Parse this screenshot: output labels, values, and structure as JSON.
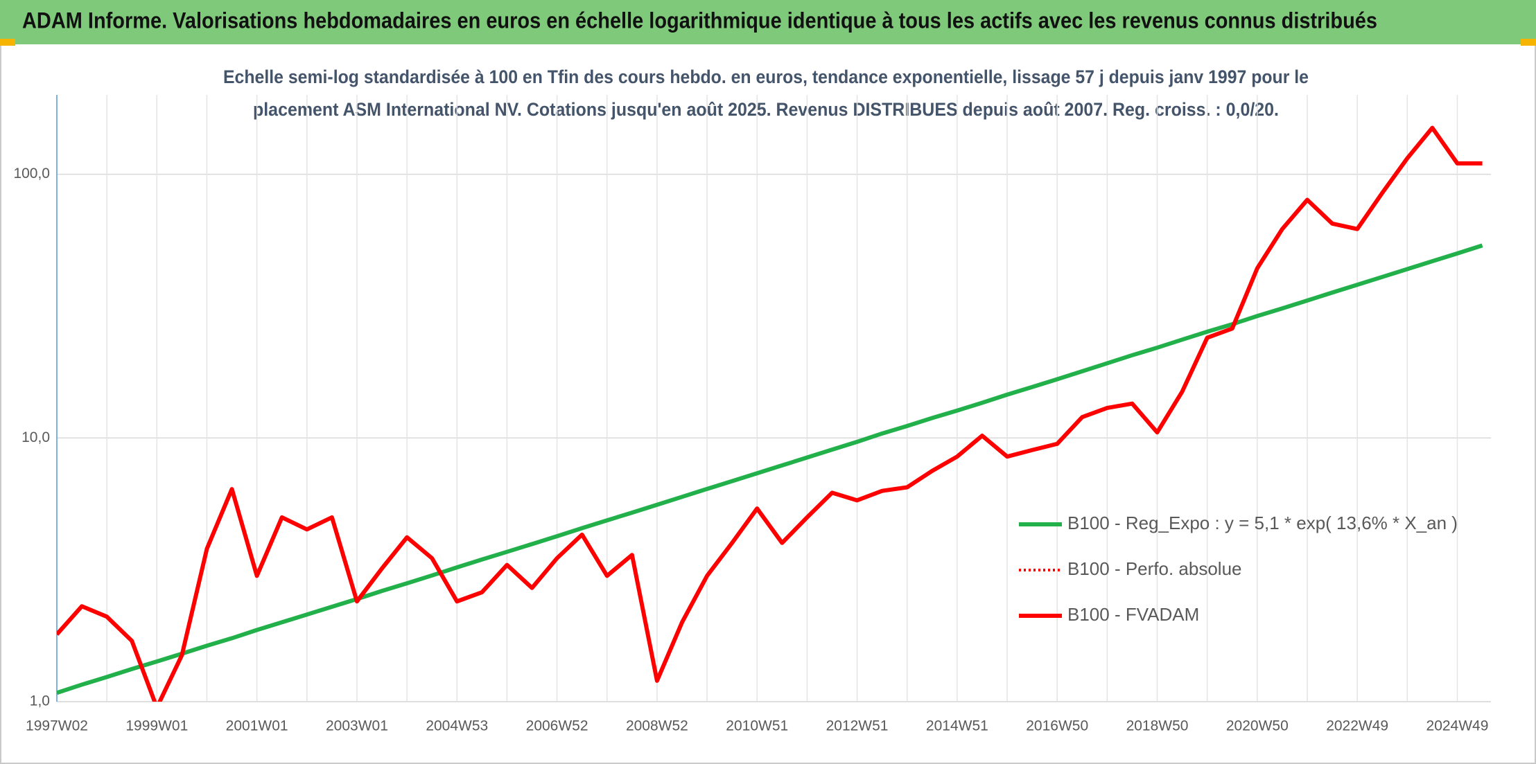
{
  "chart_data": {
    "type": "line",
    "title": "ADAM Informe. Valorisations hebdomadaires en euros en échelle logarithmique identique à tous les actifs avec les revenus connus distribués",
    "subtitle": [
      "Echelle semi-log standardisée à 100 en Tfin des cours hebdo. en euros, tendance exponentielle, lissage 57 j depuis janv 1997 pour le",
      "placement ASM International NV. Cotations jusqu'en août 2025. Revenus DISTRIBUES depuis août 2007. Reg. croiss. : 0,0/20."
    ],
    "x": [
      "1997W02",
      null,
      null,
      null,
      "1999W01",
      null,
      null,
      null,
      "2001W01",
      null,
      null,
      null,
      "2003W01",
      null,
      null,
      null,
      "2004W53",
      null,
      null,
      null,
      "2006W52",
      null,
      null,
      null,
      "2008W52",
      null,
      null,
      null,
      "2010W51",
      null,
      null,
      null,
      "2012W51",
      null,
      null,
      null,
      "2014W51",
      null,
      null,
      null,
      "2016W50",
      null,
      null,
      null,
      "2018W50",
      null,
      null,
      null,
      "2020W50",
      null,
      null,
      null,
      "2022W49",
      null,
      null,
      null,
      "2024W49",
      null
    ],
    "series": [
      {
        "name": "B100 - Reg_Expo : y = 5,1 * exp( 13,6% *  X_an )",
        "color": "#22b04b",
        "dash": "solid",
        "values": [
          1.08,
          1.16,
          1.24,
          1.33,
          1.42,
          1.52,
          1.63,
          1.74,
          1.87,
          2.0,
          2.14,
          2.29,
          2.45,
          2.63,
          2.81,
          3.01,
          3.23,
          3.46,
          3.7,
          3.96,
          4.24,
          4.55,
          4.87,
          5.21,
          5.58,
          5.98,
          6.41,
          6.86,
          7.35,
          7.87,
          8.43,
          9.03,
          9.67,
          10.4,
          11.1,
          11.9,
          12.7,
          13.6,
          14.6,
          15.6,
          16.7,
          17.9,
          19.2,
          20.6,
          22.0,
          23.6,
          25.3,
          27.0,
          29.0,
          31.0,
          33.2,
          35.6,
          38.1,
          40.8,
          43.7,
          46.8,
          50.1,
          53.7
        ]
      },
      {
        "name": "B100 - Perfo. absolue",
        "color": "#ff0000",
        "dash": "dotted",
        "values": [
          1.8,
          2.3,
          2.1,
          1.7,
          0.95,
          1.5,
          3.8,
          6.4,
          3.0,
          5.0,
          4.5,
          5.0,
          2.4,
          3.2,
          4.2,
          3.5,
          2.4,
          2.6,
          3.3,
          2.7,
          3.5,
          4.3,
          3.0,
          3.6,
          1.2,
          2.0,
          3.0,
          4.0,
          5.4,
          4.0,
          5.0,
          6.2,
          5.8,
          6.3,
          6.5,
          7.5,
          8.5,
          10.2,
          8.5,
          9.0,
          9.5,
          12.0,
          13.0,
          13.5,
          10.5,
          15.0,
          24.0,
          26.0,
          44.0,
          62.0,
          80.0,
          65.0,
          62.0,
          85.0,
          115.0,
          150.0,
          110.0,
          110.0
        ]
      },
      {
        "name": "B100 - FVADAM",
        "color": "#ff0000",
        "dash": "solid",
        "values": [
          1.8,
          2.3,
          2.1,
          1.7,
          0.95,
          1.5,
          3.8,
          6.4,
          3.0,
          5.0,
          4.5,
          5.0,
          2.4,
          3.2,
          4.2,
          3.5,
          2.4,
          2.6,
          3.3,
          2.7,
          3.5,
          4.3,
          3.0,
          3.6,
          1.2,
          2.0,
          3.0,
          4.0,
          5.4,
          4.0,
          5.0,
          6.2,
          5.8,
          6.3,
          6.5,
          7.5,
          8.5,
          10.2,
          8.5,
          9.0,
          9.5,
          12.0,
          13.0,
          13.5,
          10.5,
          15.0,
          24.0,
          26.0,
          44.0,
          62.0,
          80.0,
          65.0,
          62.0,
          85.0,
          115.0,
          150.0,
          110.0,
          110.0
        ]
      }
    ],
    "ylim": [
      1,
      200
    ],
    "yticks": [
      {
        "value": 1,
        "label": "1,0"
      },
      {
        "value": 10,
        "label": "10,0"
      },
      {
        "value": 100,
        "label": "100,0"
      }
    ],
    "log_scale": true,
    "grid": true,
    "legend": "right"
  }
}
